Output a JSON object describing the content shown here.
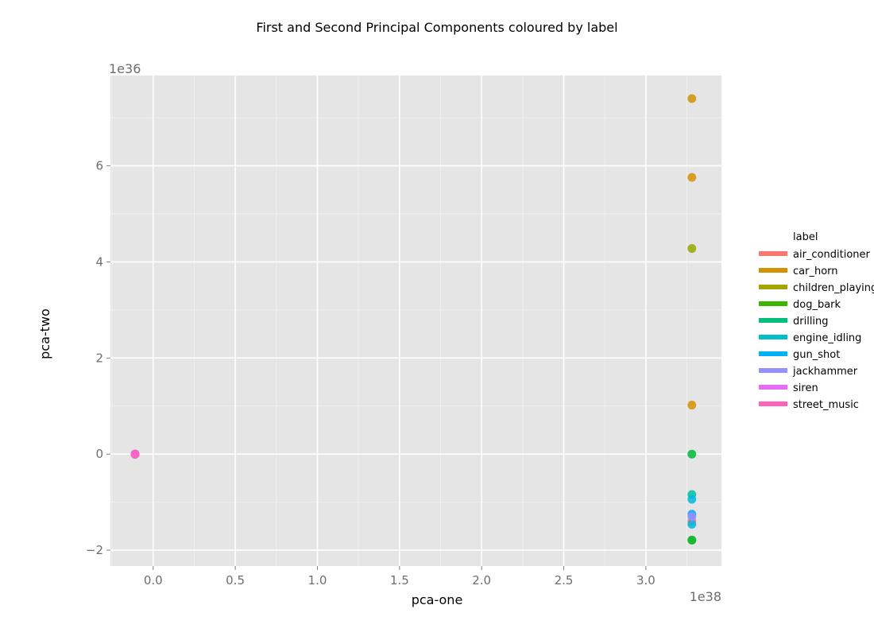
{
  "chart_data": {
    "type": "scatter",
    "title": "First and Second Principal Components coloured by label",
    "xlabel": "pca-one",
    "ylabel": "pca-two",
    "x_exponent_label": "1e38",
    "y_exponent_label": "1e36",
    "xlim": [
      -0.26,
      3.46
    ],
    "ylim": [
      -2.33,
      7.88
    ],
    "x_ticks": [
      0.0,
      0.5,
      1.0,
      1.5,
      2.0,
      2.5,
      3.0
    ],
    "x_tick_labels": [
      "0.0",
      "0.5",
      "1.0",
      "1.5",
      "2.0",
      "2.5",
      "3.0"
    ],
    "y_ticks": [
      -2,
      0,
      2,
      4,
      6
    ],
    "y_tick_labels": [
      "−2",
      "0",
      "2",
      "4",
      "6"
    ],
    "grid": true,
    "legend_position": "right",
    "legend_title": "label",
    "series": [
      {
        "name": "air_conditioner",
        "color": "#F8766D",
        "points": [
          [
            -0.11,
            0.0
          ],
          [
            3.28,
            -1.4
          ]
        ]
      },
      {
        "name": "car_horn",
        "color": "#D39200",
        "points": [
          [
            -0.11,
            0.0
          ],
          [
            3.28,
            7.4
          ],
          [
            3.28,
            5.76
          ],
          [
            3.28,
            1.02
          ]
        ]
      },
      {
        "name": "children_playing",
        "color": "#93AA00",
        "points": [
          [
            -0.11,
            0.0
          ],
          [
            3.28,
            4.28
          ],
          [
            3.28,
            -1.79
          ]
        ]
      },
      {
        "name": "dog_bark",
        "color": "#00BA38",
        "points": [
          [
            -0.11,
            0.0
          ],
          [
            3.28,
            0.0
          ],
          [
            3.28,
            -1.79
          ]
        ]
      },
      {
        "name": "drilling",
        "color": "#00C19F",
        "points": [
          [
            -0.11,
            0.0
          ],
          [
            3.28,
            -0.84
          ]
        ]
      },
      {
        "name": "engine_idling",
        "color": "#00B9E3",
        "points": [
          [
            -0.11,
            0.0
          ],
          [
            3.28,
            -0.94
          ],
          [
            3.28,
            -1.46
          ]
        ]
      },
      {
        "name": "gun_shot",
        "color": "#00A5FF",
        "points": [
          [
            -0.11,
            0.0
          ],
          [
            3.28,
            -1.25
          ]
        ]
      },
      {
        "name": "jackhammer",
        "color": "#9590FF",
        "points": [
          [
            -0.11,
            0.0
          ],
          [
            3.28,
            -1.3
          ]
        ]
      },
      {
        "name": "siren",
        "color": "#E76BF3",
        "points": [
          [
            -0.11,
            0.0
          ]
        ]
      },
      {
        "name": "street_music",
        "color": "#FF62BC",
        "points": [
          [
            -0.11,
            0.0
          ]
        ]
      }
    ]
  },
  "legend_swatch_colors": [
    "#F8766D",
    "#D39200",
    "#A3A500",
    "#39B600",
    "#00BF7D",
    "#00BFC4",
    "#00B0F6",
    "#9590FF",
    "#E76BF3",
    "#FF62BC"
  ]
}
